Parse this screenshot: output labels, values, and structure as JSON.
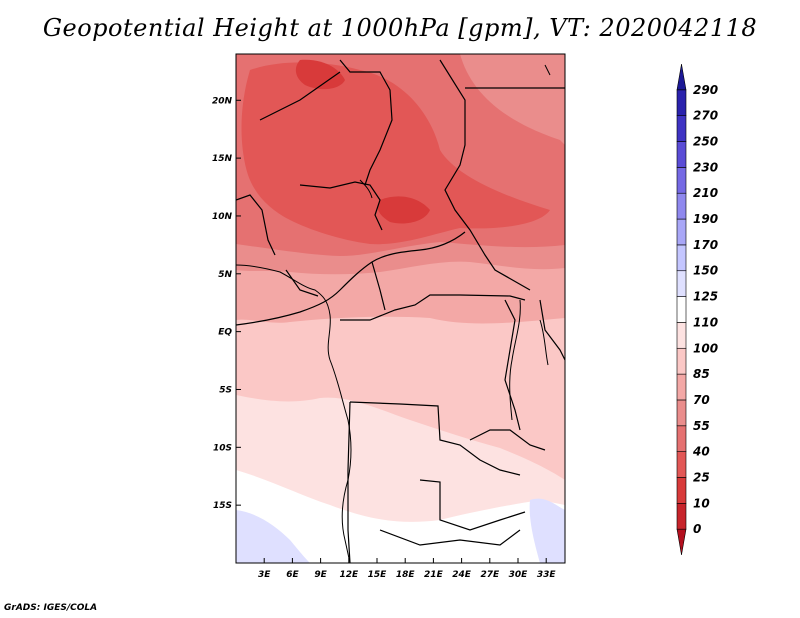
{
  "chart_data": {
    "type": "filled-contour-map",
    "title": "Geopotential Height at 1000hPa [gpm], VT: 2020042118",
    "variable": "Geopotential Height",
    "level": "1000hPa",
    "units": "gpm",
    "valid_time": "2020042118",
    "x_ticks": [
      "3E",
      "6E",
      "9E",
      "12E",
      "15E",
      "18E",
      "21E",
      "24E",
      "27E",
      "30E",
      "33E"
    ],
    "y_ticks": [
      "20N",
      "15N",
      "10N",
      "5N",
      "EQ",
      "5S",
      "10S",
      "15S"
    ],
    "lon_range": [
      0,
      35
    ],
    "lat_range": [
      -20,
      24
    ],
    "colorbar": {
      "levels": [
        "0",
        "10",
        "25",
        "40",
        "55",
        "70",
        "85",
        "100",
        "110",
        "125",
        "150",
        "170",
        "190",
        "210",
        "230",
        "250",
        "270",
        "290"
      ],
      "colors": [
        "#b30f1e",
        "#c7242b",
        "#d83a3a",
        "#e25756",
        "#e57171",
        "#ea8d8c",
        "#f3a8a6",
        "#fbc8c6",
        "#fde2e1",
        "#ffffff",
        "#dfe0ff",
        "#c4c6ff",
        "#a9a7f7",
        "#8f88ee",
        "#7569e4",
        "#5a4cd6",
        "#3e33c3",
        "#2a22ad",
        "#1c1996"
      ]
    }
  },
  "credit": "GrADS: IGES/COLA"
}
